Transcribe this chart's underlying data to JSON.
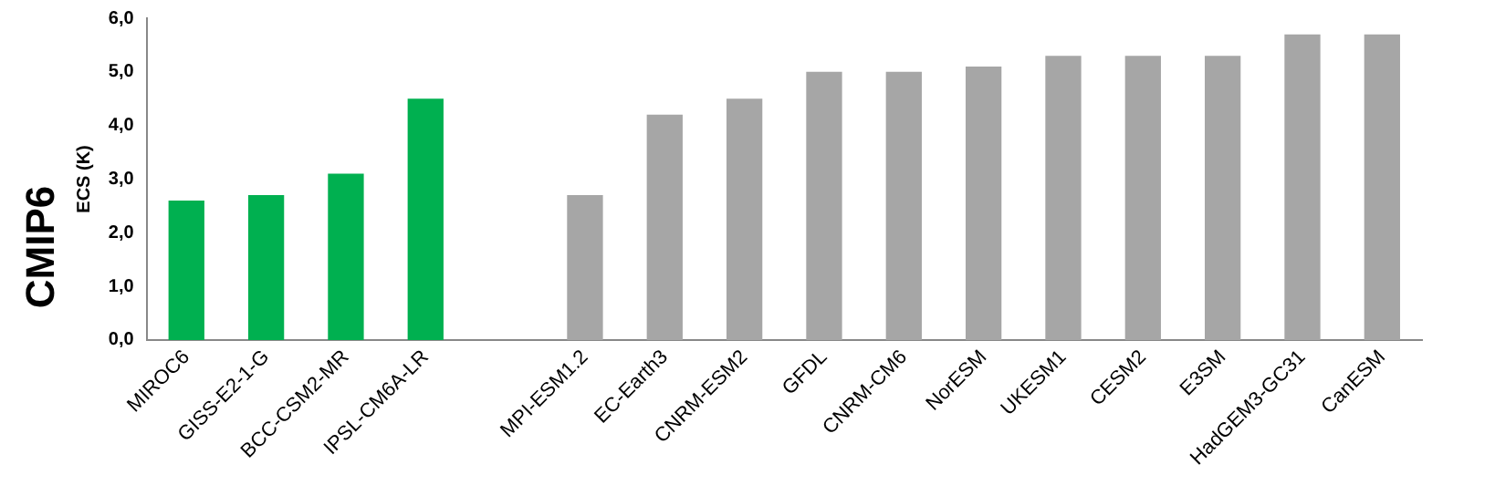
{
  "chart_data": {
    "type": "bar",
    "title": "CMIP6",
    "ylabel": "ECS (K)",
    "categories": [
      "MIROC6",
      "GISS-E2-1-G",
      "BCC-CSM2-MR",
      "IPSL-CM6A-LR",
      null,
      "MPI-ESM1.2",
      "EC-Earth3",
      "CNRM-ESM2",
      "GFDL",
      "CNRM-CM6",
      "NorESM",
      "UKESM1",
      "CESM2",
      "E3SM",
      "HadGEM3-GC31",
      "CanESM"
    ],
    "values": [
      2.6,
      2.7,
      3.1,
      4.5,
      null,
      2.7,
      4.2,
      4.5,
      5.0,
      5.0,
      5.1,
      5.3,
      5.3,
      5.3,
      5.7,
      5.7
    ],
    "colors": [
      "#00b050",
      "#00b050",
      "#00b050",
      "#00b050",
      "#a6a6a6",
      "#a6a6a6",
      "#a6a6a6",
      "#a6a6a6",
      "#a6a6a6",
      "#a6a6a6",
      "#a6a6a6",
      "#a6a6a6",
      "#a6a6a6",
      "#a6a6a6",
      "#a6a6a6",
      "#a6a6a6"
    ],
    "ylim": [
      0,
      6
    ],
    "yticks": [
      {
        "value": 0,
        "label": "0,0"
      },
      {
        "value": 1,
        "label": "1,0"
      },
      {
        "value": 2,
        "label": "2,0"
      },
      {
        "value": 3,
        "label": "3,0"
      },
      {
        "value": 4,
        "label": "4,0"
      },
      {
        "value": 5,
        "label": "5,0"
      },
      {
        "value": 6,
        "label": "6,0"
      }
    ],
    "grid": false,
    "legend": false
  }
}
